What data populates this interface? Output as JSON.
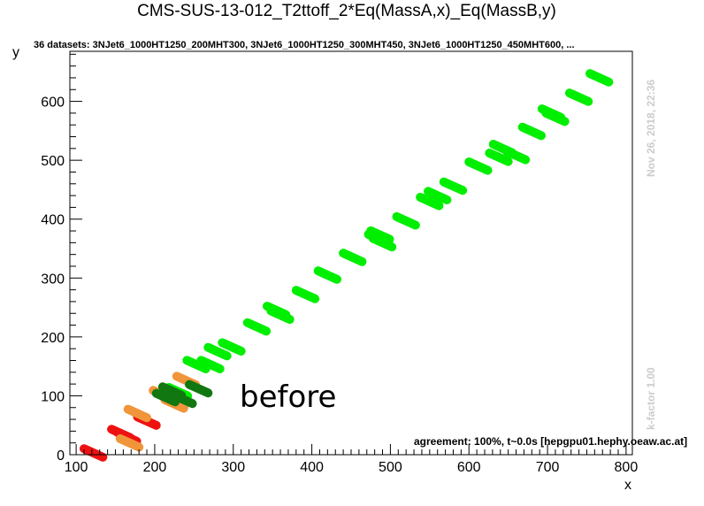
{
  "chart_data": {
    "type": "scatter",
    "title": "CMS-SUS-13-012_T2ttoff_2*Eq(MassA,x)_Eq(MassB,y)",
    "subtitle": "36 datasets: 3NJet6_1000HT1250_200MHT300, 3NJet6_1000HT1250_300MHT450, 3NJet6_1000HT1250_450MHT600,  ...",
    "xlabel": "x",
    "ylabel": "y",
    "xlim": [
      92,
      808
    ],
    "ylim": [
      0,
      685
    ],
    "xticks": [
      100,
      200,
      300,
      400,
      500,
      600,
      700,
      800
    ],
    "yticks": [
      0,
      100,
      200,
      300,
      400,
      500,
      600
    ],
    "side_text_top": "Nov 26, 2018, 22:36",
    "side_text_bottom": "k-factor 1.00",
    "annotation": "before",
    "agreement": "agreement: 100%, t~0.0s [hepgpu01.hephy.oeaw.ac.at]",
    "colors": {
      "green": "#00ee00",
      "red": "#ee1111",
      "orange": "#f0953a",
      "darkgreen": "#117711"
    },
    "segment_slope": -0.6,
    "segment_half_width_x": 12,
    "series": [
      {
        "color": "green",
        "centers": [
          [
            253,
            153
          ],
          [
            271,
            153
          ],
          [
            280,
            175
          ],
          [
            298,
            183
          ],
          [
            330,
            217
          ],
          [
            355,
            245
          ],
          [
            360,
            237
          ],
          [
            392,
            272
          ],
          [
            420,
            305
          ],
          [
            452,
            335
          ],
          [
            484,
            367
          ],
          [
            487,
            373
          ],
          [
            490,
            360
          ],
          [
            520,
            397
          ],
          [
            550,
            430
          ],
          [
            560,
            440
          ],
          [
            580,
            456
          ],
          [
            612,
            490
          ],
          [
            638,
            505
          ],
          [
            643,
            520
          ],
          [
            660,
            508
          ],
          [
            680,
            549
          ],
          [
            705,
            580
          ],
          [
            710,
            573
          ],
          [
            740,
            607
          ],
          [
            766,
            640
          ],
          [
            220,
            96
          ],
          [
            230,
            107
          ]
        ]
      },
      {
        "color": "red",
        "centers": [
          [
            122,
            3
          ],
          [
            157,
            36
          ],
          [
            165,
            30
          ],
          [
            190,
            57
          ],
          [
            225,
            88
          ]
        ]
      },
      {
        "color": "orange",
        "centers": [
          [
            168,
            20
          ],
          [
            178,
            70
          ],
          [
            210,
            102
          ],
          [
            240,
            126
          ],
          [
            225,
            86
          ]
        ]
      },
      {
        "color": "darkgreen",
        "centers": [
          [
            222,
            108
          ],
          [
            236,
            94
          ],
          [
            256,
            112
          ],
          [
            214,
            97
          ]
        ]
      }
    ]
  }
}
